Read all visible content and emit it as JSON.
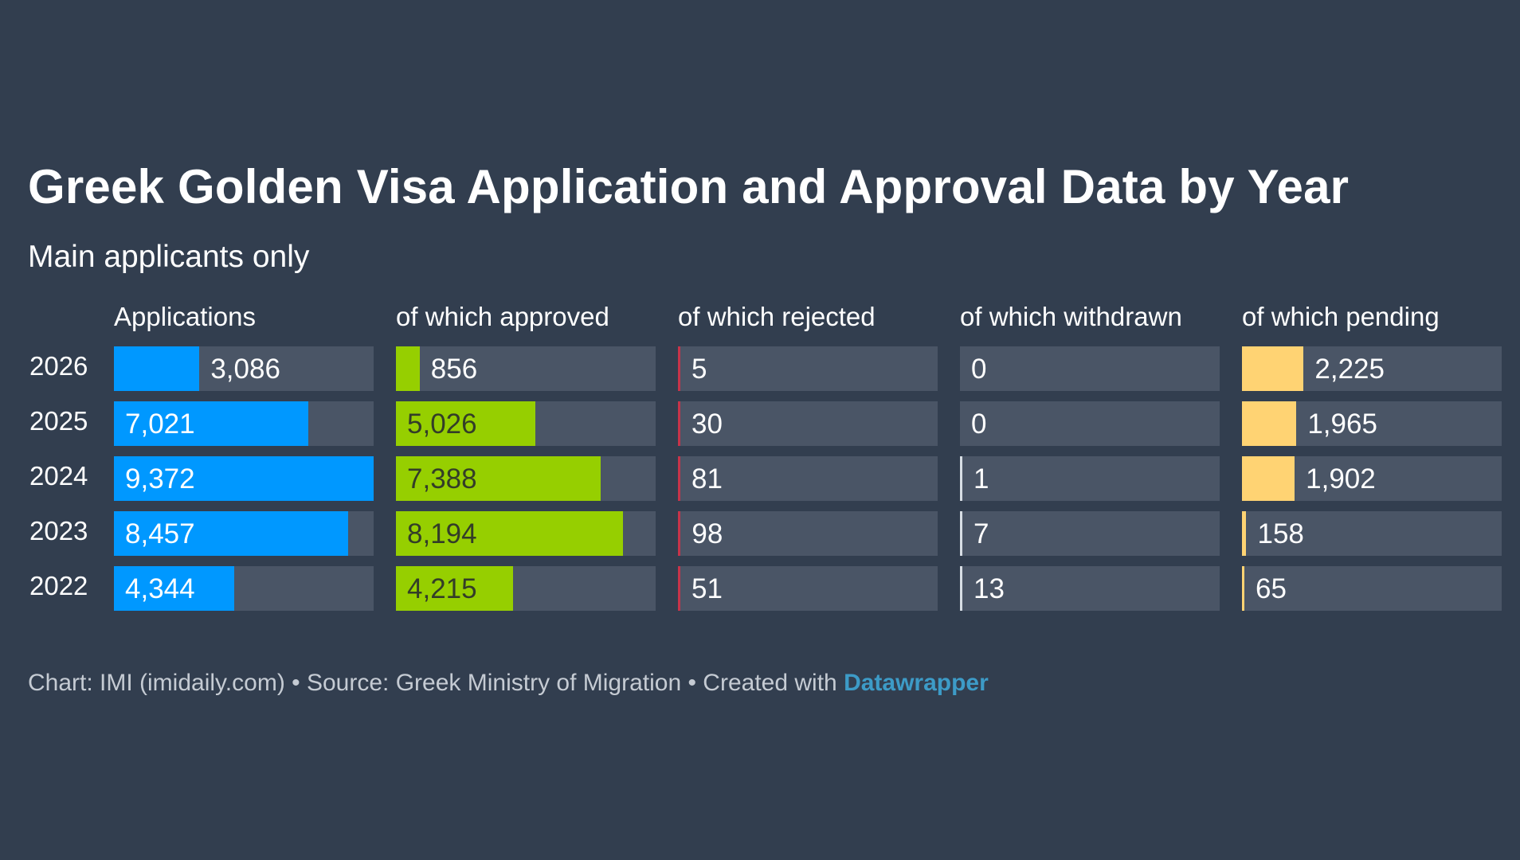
{
  "title": "Greek Golden Visa Application and Approval Data by Year",
  "subtitle": "Main applicants only",
  "footer": {
    "text": "Chart: IMI (imidaily.com) • Source: Greek Ministry of Migration • Created with ",
    "link": "Datawrapper"
  },
  "colors": {
    "background": "#323e4f",
    "cell_background": "#4a5566",
    "applications": "#0098ff",
    "approved": "#96cf00",
    "rejected": "#c7344a",
    "withdrawn": "#d7dde4",
    "pending": "#ffd373"
  },
  "chart_data": {
    "type": "table",
    "rows": [
      "2026",
      "2025",
      "2024",
      "2023",
      "2022"
    ],
    "columns": [
      {
        "name": "Applications",
        "key": "applications",
        "values": [
          3086,
          7021,
          9372,
          8457,
          4344
        ],
        "labels": [
          "3,086",
          "7,021",
          "9,372",
          "8,457",
          "4,344"
        ]
      },
      {
        "name": "of which approved",
        "key": "approved",
        "values": [
          856,
          5026,
          7388,
          8194,
          4215
        ],
        "labels": [
          "856",
          "5,026",
          "7,388",
          "8,194",
          "4,215"
        ]
      },
      {
        "name": "of which rejected",
        "key": "rejected",
        "values": [
          5,
          30,
          81,
          98,
          51
        ],
        "labels": [
          "5",
          "30",
          "81",
          "98",
          "51"
        ]
      },
      {
        "name": "of which withdrawn",
        "key": "withdrawn",
        "values": [
          0,
          0,
          1,
          7,
          13
        ],
        "labels": [
          "0",
          "0",
          "1",
          "7",
          "13"
        ]
      },
      {
        "name": "of which pending",
        "key": "pending",
        "values": [
          2225,
          1965,
          1902,
          158,
          65
        ],
        "labels": [
          "2,225",
          "1,965",
          "1,902",
          "158",
          "65"
        ]
      }
    ],
    "scale_max": 9372
  }
}
